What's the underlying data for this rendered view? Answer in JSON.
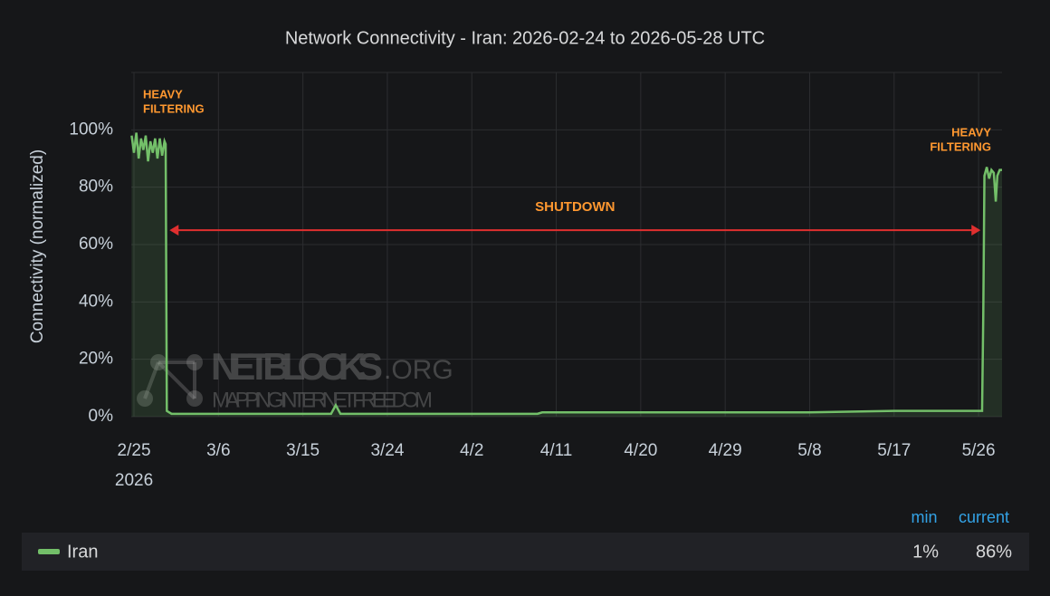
{
  "chart_data": {
    "type": "line",
    "title": "Network Connectivity - Iran: 2026-02-24 to 2026-05-28 UTC",
    "y_label": "Connectivity (normalized)",
    "xlim": [
      "2026-02-24T17:00",
      "2026-05-28T12:00"
    ],
    "xticks": [
      {
        "value": "2026-02-25",
        "label": "2/25"
      },
      {
        "value": "2026-03-06",
        "label": "3/6"
      },
      {
        "value": "2026-03-15",
        "label": "3/15"
      },
      {
        "value": "2026-03-24",
        "label": "3/24"
      },
      {
        "value": "2026-04-02",
        "label": "4/2"
      },
      {
        "value": "2026-04-11",
        "label": "4/11"
      },
      {
        "value": "2026-04-20",
        "label": "4/20"
      },
      {
        "value": "2026-04-29",
        "label": "4/29"
      },
      {
        "value": "2026-05-08",
        "label": "5/8"
      },
      {
        "value": "2026-05-17",
        "label": "5/17"
      },
      {
        "value": "2026-05-26",
        "label": "5/26"
      }
    ],
    "x_year_label": "2026",
    "ylim": [
      0,
      120
    ],
    "yticks": [
      {
        "value": 0,
        "label": "0%"
      },
      {
        "value": 20,
        "label": "20%"
      },
      {
        "value": 40,
        "label": "40%"
      },
      {
        "value": 60,
        "label": "60%"
      },
      {
        "value": 80,
        "label": "80%"
      },
      {
        "value": 100,
        "label": "100%"
      }
    ],
    "grid": true,
    "x": [
      "2026-02-24T18:00",
      "2026-02-25T00:00",
      "2026-02-25T06:00",
      "2026-02-25T12:00",
      "2026-02-25T18:00",
      "2026-02-26T00:00",
      "2026-02-26T06:00",
      "2026-02-26T12:00",
      "2026-02-26T18:00",
      "2026-02-27T00:00",
      "2026-02-27T06:00",
      "2026-02-27T12:00",
      "2026-02-27T18:00",
      "2026-02-28T00:00",
      "2026-02-28T06:00",
      "2026-02-28T09:00",
      "2026-02-28T12:00",
      "2026-03-01T00:00",
      "2026-03-05T00:00",
      "2026-03-18T00:00",
      "2026-03-18T12:00",
      "2026-03-19T00:00",
      "2026-04-02T00:00",
      "2026-04-09T00:00",
      "2026-04-09T12:00",
      "2026-04-20T00:00",
      "2026-05-08T00:00",
      "2026-05-17T00:00",
      "2026-05-26T00:00",
      "2026-05-26T09:00",
      "2026-05-26T12:00",
      "2026-05-26T15:00",
      "2026-05-26T21:00",
      "2026-05-27T03:00",
      "2026-05-27T09:00",
      "2026-05-27T15:00",
      "2026-05-27T20:00",
      "2026-05-28T00:00",
      "2026-05-28T06:00",
      "2026-05-28T12:00"
    ],
    "series": [
      {
        "name": "Iran",
        "color": "#73bf69",
        "values": [
          98,
          92,
          99,
          90,
          97,
          93,
          98,
          89,
          96,
          92,
          97,
          90,
          97,
          91,
          96,
          95,
          2,
          1,
          1,
          1,
          4,
          1,
          1,
          1,
          1.5,
          1.5,
          1.5,
          2,
          2,
          2,
          35,
          84,
          87,
          83,
          86,
          85,
          75,
          84,
          86,
          86
        ]
      }
    ],
    "annotations": {
      "left_filtering": [
        "HEAVY",
        "FILTERING"
      ],
      "right_filtering": [
        "HEAVY",
        "FILTERING"
      ],
      "shutdown": {
        "label": "SHUTDOWN",
        "x": [
          "2026-02-28T12:00",
          "2026-05-26T12:00"
        ],
        "y": 65
      }
    },
    "watermark": {
      "name": "NETBLOCKS",
      "suffix": ".ORG",
      "tagline": "MAPPING INTERNET FREEDOM"
    },
    "legend": {
      "columns": [
        "min",
        "current"
      ],
      "values": [
        1,
        86
      ],
      "value_labels": [
        "1%",
        "86%"
      ]
    }
  }
}
